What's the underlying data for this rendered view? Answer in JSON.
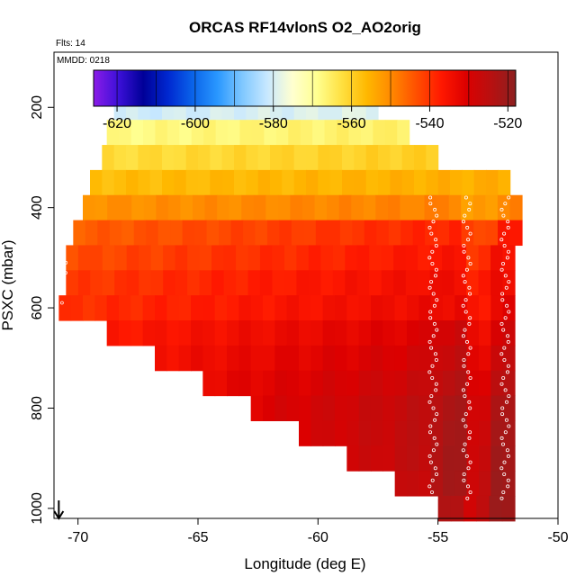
{
  "chart_data": {
    "type": "heatmap",
    "title": "ORCAS RF14vlonS O2_AO2orig",
    "annotations": {
      "flights": "Flts: 14",
      "date": "MMDD: 0218"
    },
    "xlabel": "Longitude (deg E)",
    "ylabel": "PSXC (mbar)",
    "xlim": [
      -71,
      -50
    ],
    "ylim": [
      1020,
      90
    ],
    "x_ticks": [
      -70,
      -65,
      -60,
      -55,
      -50
    ],
    "x_tick_labels": [
      "-70",
      "-65",
      "-60",
      "-55",
      "-50"
    ],
    "y_ticks": [
      200,
      400,
      600,
      800,
      1000
    ],
    "y_tick_labels": [
      "200",
      "400",
      "600",
      "800",
      "1000"
    ],
    "colorbar": {
      "range": [
        -626,
        -518
      ],
      "ticks": [
        -620,
        -600,
        -580,
        -560,
        -540,
        -520
      ],
      "tick_labels": [
        "-620",
        "-600",
        "-580",
        "-560",
        "-540",
        "-520"
      ],
      "color_stops": [
        "#8b1ce8",
        "#3c10d8",
        "#000098",
        "#0028d0",
        "#0a64ea",
        "#2a98ff",
        "#80c8ff",
        "#c8e8ff",
        "#ffffd0",
        "#ffff90",
        "#ffe040",
        "#ffb800",
        "#ff8800",
        "#ff5000",
        "#ff1800",
        "#dc0000",
        "#b81010",
        "#8c2020"
      ]
    },
    "rows": [
      {
        "p": 200,
        "lon_min": -68.5,
        "lon_max": -57.5,
        "value": -581
      },
      {
        "p": 250,
        "lon_min": -68.8,
        "lon_max": -56.2,
        "value": -568
      },
      {
        "p": 300,
        "lon_min": -69.0,
        "lon_max": -55.0,
        "value": -562
      },
      {
        "p": 350,
        "lon_min": -69.5,
        "lon_max": -52.0,
        "value": -557
      },
      {
        "p": 400,
        "lon_min": -69.8,
        "lon_max": -51.5,
        "value": -551
      },
      {
        "p": 450,
        "lon_min": -70.2,
        "lon_max": -51.5,
        "value": -545
      },
      {
        "p": 500,
        "lon_min": -70.5,
        "lon_max": -51.8,
        "value": -543
      },
      {
        "p": 550,
        "lon_min": -70.5,
        "lon_max": -51.8,
        "value": -541
      },
      {
        "p": 600,
        "lon_min": -70.8,
        "lon_max": -51.8,
        "value": -540
      },
      {
        "p": 650,
        "lon_min": -68.8,
        "lon_max": -51.8,
        "value": -537
      },
      {
        "p": 700,
        "lon_min": -66.8,
        "lon_max": -51.8,
        "value": -535
      },
      {
        "p": 750,
        "lon_min": -64.8,
        "lon_max": -51.8,
        "value": -533
      },
      {
        "p": 800,
        "lon_min": -62.8,
        "lon_max": -51.8,
        "value": -531
      },
      {
        "p": 850,
        "lon_min": -60.8,
        "lon_max": -51.8,
        "value": -530
      },
      {
        "p": 900,
        "lon_min": -58.8,
        "lon_max": -51.8,
        "value": -529
      },
      {
        "p": 950,
        "lon_min": -56.8,
        "lon_max": -51.8,
        "value": -528
      },
      {
        "p": 1000,
        "lon_min": -55.0,
        "lon_max": -51.8,
        "value": -527
      }
    ],
    "flight_track_lon": [
      -55.2,
      -53.8,
      -52.2
    ],
    "arrow_lon": -70.8,
    "grid": false
  }
}
